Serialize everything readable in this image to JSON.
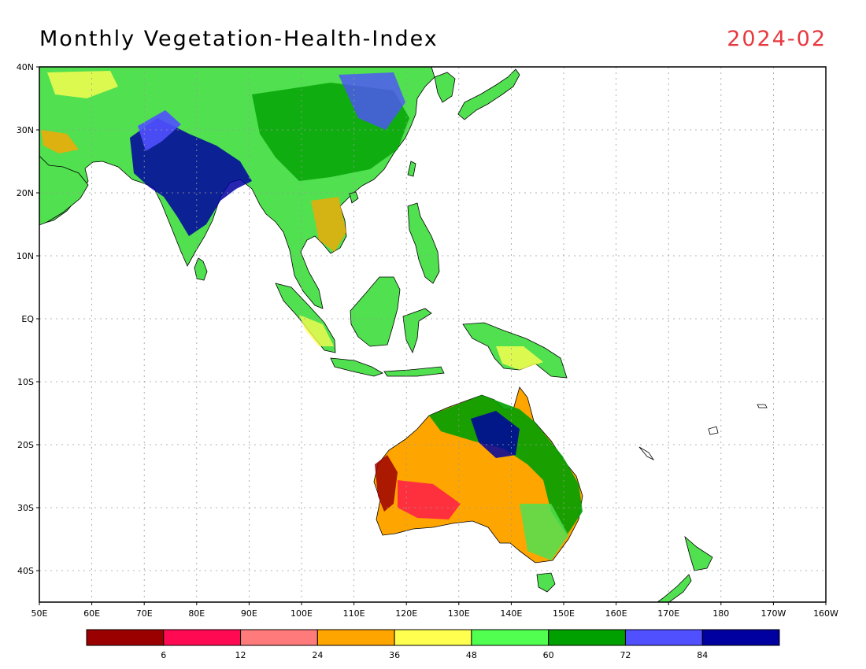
{
  "header": {
    "title": "Monthly Vegetation-Health-Index",
    "date": "2024-02"
  },
  "map": {
    "lat_labels": [
      "40N",
      "30N",
      "20N",
      "10N",
      "EQ",
      "10S",
      "20S",
      "30S",
      "40S"
    ],
    "lon_labels": [
      "50E",
      "60E",
      "70E",
      "80E",
      "90E",
      "100E",
      "110E",
      "120E",
      "130E",
      "140E",
      "150E",
      "160E",
      "170E",
      "180",
      "170W",
      "160W"
    ],
    "lon_range": [
      50,
      200
    ],
    "lat_range": [
      -45,
      40
    ],
    "grid": true
  },
  "legend": {
    "colors": [
      "#9b0000",
      "#ff0a52",
      "#ff7a7a",
      "#ffa500",
      "#ffff50",
      "#50ff50",
      "#00a000",
      "#5050ff",
      "#0000a0"
    ],
    "labels": [
      "6",
      "12",
      "24",
      "36",
      "48",
      "60",
      "72",
      "84"
    ]
  }
}
